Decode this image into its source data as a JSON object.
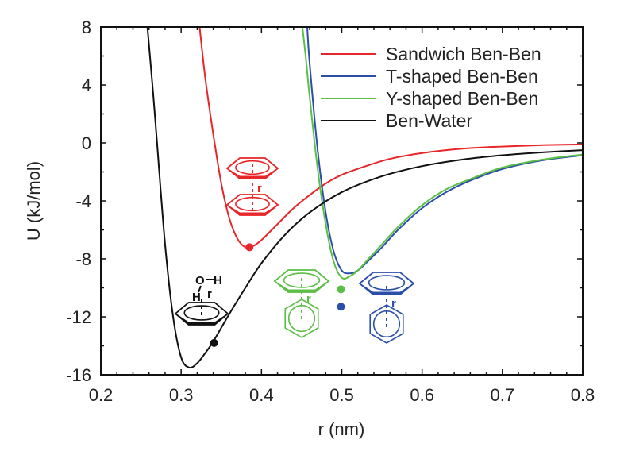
{
  "chart_data": {
    "type": "line",
    "title": "",
    "xlabel": "r (nm)",
    "ylabel": "U (kJ/mol)",
    "xlim": [
      0.2,
      0.8
    ],
    "ylim": [
      -16,
      8
    ],
    "xticks": [
      0.2,
      0.3,
      0.4,
      0.5,
      0.6,
      0.7,
      0.8
    ],
    "xtick_labels": [
      "0.2",
      "0.3",
      "0.4",
      "0.5",
      "0.6",
      "0.7",
      "0.8"
    ],
    "yticks": [
      8,
      4,
      0,
      -4,
      -8,
      -12,
      -16
    ],
    "ytick_labels": [
      "8",
      "4",
      "0",
      "-4",
      "-8",
      "-12",
      "-16"
    ],
    "grid": false,
    "legend_position": "top-right",
    "series": [
      {
        "name": "Sandwich Ben-Ben",
        "color": "#e8262a",
        "x": [
          0.323,
          0.33,
          0.34,
          0.35,
          0.36,
          0.37,
          0.38,
          0.39,
          0.4,
          0.42,
          0.44,
          0.46,
          0.48,
          0.5,
          0.53,
          0.56,
          0.6,
          0.65,
          0.7,
          0.75,
          0.8
        ],
        "y": [
          8.0,
          4.5,
          0.6,
          -2.8,
          -5.2,
          -6.6,
          -7.2,
          -7.1,
          -6.7,
          -5.6,
          -4.5,
          -3.6,
          -2.8,
          -2.2,
          -1.6,
          -1.1,
          -0.7,
          -0.4,
          -0.25,
          -0.15,
          -0.1
        ]
      },
      {
        "name": "T-shaped Ben-Ben",
        "color": "#2b4fa8",
        "x": [
          0.457,
          0.46,
          0.47,
          0.48,
          0.49,
          0.5,
          0.51,
          0.52,
          0.53,
          0.55,
          0.57,
          0.6,
          0.63,
          0.66,
          0.7,
          0.75,
          0.8
        ],
        "y": [
          8.0,
          5.5,
          -0.5,
          -4.8,
          -7.5,
          -8.8,
          -9.0,
          -8.8,
          -8.3,
          -7.2,
          -6.0,
          -4.5,
          -3.4,
          -2.6,
          -1.8,
          -1.2,
          -0.85
        ]
      },
      {
        "name": "Y-shaped Ben-Ben",
        "color": "#5cbf45",
        "x": [
          0.451,
          0.455,
          0.46,
          0.47,
          0.48,
          0.49,
          0.5,
          0.51,
          0.52,
          0.53,
          0.55,
          0.57,
          0.6,
          0.63,
          0.66,
          0.7,
          0.75,
          0.8
        ],
        "y": [
          8.0,
          6.0,
          3.2,
          -1.8,
          -5.6,
          -8.2,
          -9.3,
          -9.2,
          -8.8,
          -8.2,
          -7.0,
          -5.8,
          -4.3,
          -3.2,
          -2.5,
          -1.7,
          -1.15,
          -0.8
        ]
      },
      {
        "name": "Ben-Water",
        "color": "#111111",
        "x": [
          0.258,
          0.265,
          0.27,
          0.28,
          0.29,
          0.3,
          0.31,
          0.32,
          0.33,
          0.34,
          0.36,
          0.38,
          0.4,
          0.43,
          0.46,
          0.5,
          0.55,
          0.6,
          0.65,
          0.7,
          0.75,
          0.8
        ],
        "y": [
          8.0,
          3.5,
          0.0,
          -7.0,
          -12.0,
          -14.8,
          -15.5,
          -15.2,
          -14.5,
          -13.7,
          -11.8,
          -10.0,
          -8.3,
          -6.3,
          -4.8,
          -3.4,
          -2.3,
          -1.6,
          -1.15,
          -0.85,
          -0.65,
          -0.5
        ]
      }
    ],
    "markers": [
      {
        "name": "sandwich-min-marker",
        "series": "Sandwich Ben-Ben",
        "x": 0.385,
        "y": -7.2,
        "color": "#e8262a"
      },
      {
        "name": "water-marker",
        "series": "Ben-Water",
        "x": 0.341,
        "y": -13.8,
        "color": "#111111"
      },
      {
        "name": "y-shaped-marker",
        "series": "Y-shaped Ben-Ben",
        "x": 0.499,
        "y": -10.1,
        "color": "#5cbf45"
      },
      {
        "name": "t-shaped-marker",
        "series": "T-shaped Ben-Ben",
        "x": 0.499,
        "y": -11.3,
        "color": "#2b4fa8"
      }
    ],
    "annotations": [
      {
        "name": "sandwich-structure",
        "label": "r",
        "color": "#e8262a",
        "anchor_x": 0.39,
        "anchor_y": -3.3,
        "kind": "sandwich"
      },
      {
        "name": "water-structure",
        "label": "r",
        "atoms": [
          "O",
          "H",
          "H"
        ],
        "color": "#111111",
        "anchor_x": 0.32,
        "anchor_y": -11.5,
        "kind": "water"
      },
      {
        "name": "y-shaped-structure",
        "label": "r",
        "color": "#5cbf45",
        "anchor_x": 0.448,
        "anchor_y": -11.2,
        "kind": "yshape"
      },
      {
        "name": "t-shaped-structure",
        "label": "r",
        "color": "#2b4fa8",
        "anchor_x": 0.552,
        "anchor_y": -11.5,
        "kind": "tshape"
      }
    ]
  }
}
